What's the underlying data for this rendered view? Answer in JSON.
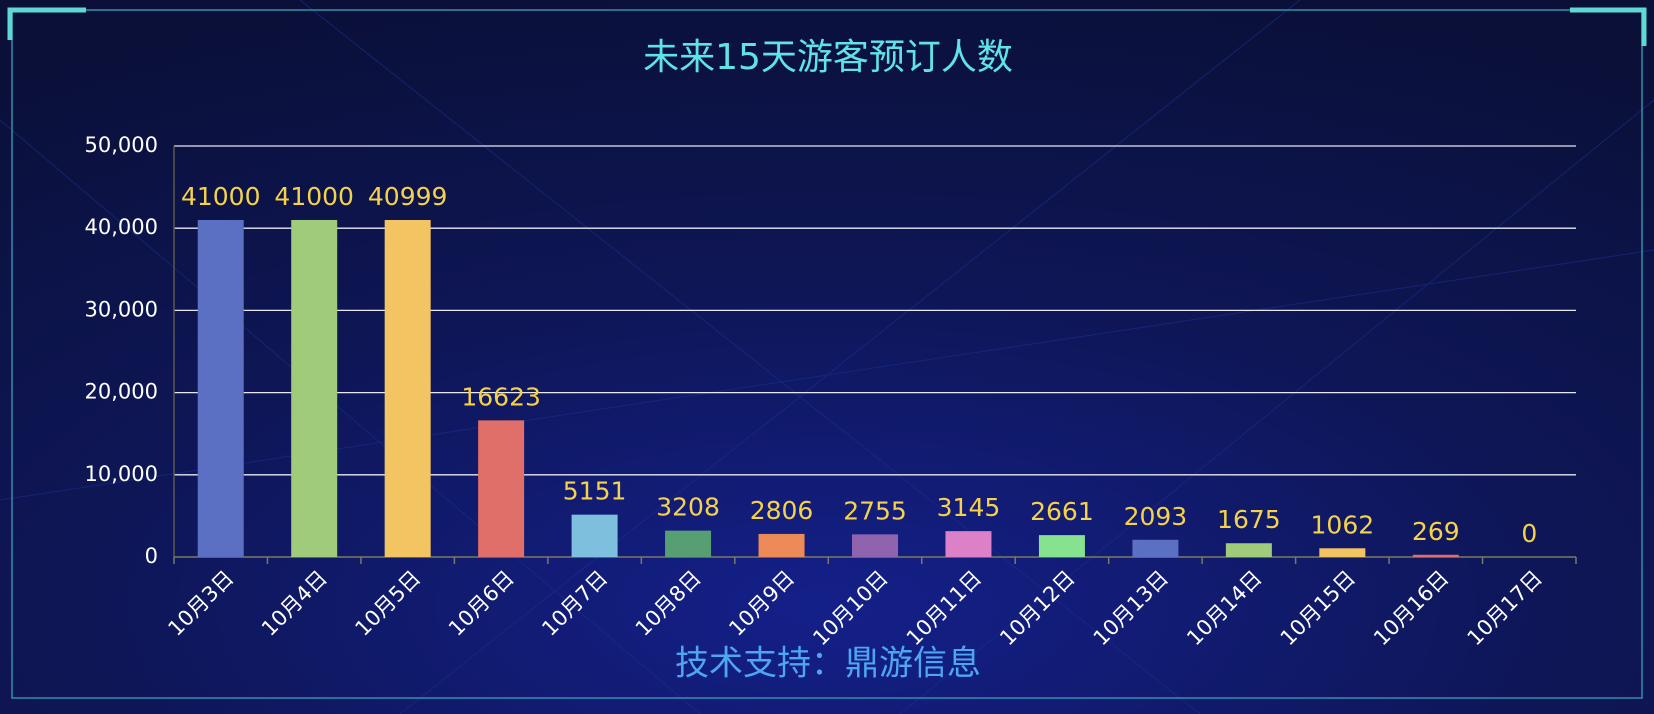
{
  "chart_data": {
    "type": "bar",
    "title": "未来15天游客预订人数",
    "footer": "技术支持：鼎游信息",
    "categories": [
      "10月3日",
      "10月4日",
      "10月5日",
      "10月6日",
      "10月7日",
      "10月8日",
      "10月9日",
      "10月10日",
      "10月11日",
      "10月12日",
      "10月13日",
      "10月14日",
      "10月15日",
      "10月16日",
      "10月17日"
    ],
    "values": [
      41000,
      41000,
      40999,
      16623,
      5151,
      3208,
      2806,
      2755,
      3145,
      2661,
      2093,
      1675,
      1062,
      269,
      0
    ],
    "colors": [
      "#5b70c2",
      "#9fcb7b",
      "#f2c462",
      "#e06e69",
      "#7fbfde",
      "#579f72",
      "#ee8a58",
      "#8f63ae",
      "#dc80c8",
      "#87e28f",
      "#5b70c2",
      "#9fcb7b",
      "#f2c462",
      "#e06e69",
      "#7fbfde"
    ],
    "ylim": [
      0,
      50000
    ],
    "yticks": [
      0,
      {
        "value": 10000,
        "label": "10,000"
      },
      {
        "value": 20000,
        "label": "20,000"
      },
      {
        "value": 30000,
        "label": "30,000"
      },
      {
        "value": 40000,
        "label": "40,000"
      },
      {
        "value": 50000,
        "label": "50,000"
      }
    ],
    "grid": true
  }
}
